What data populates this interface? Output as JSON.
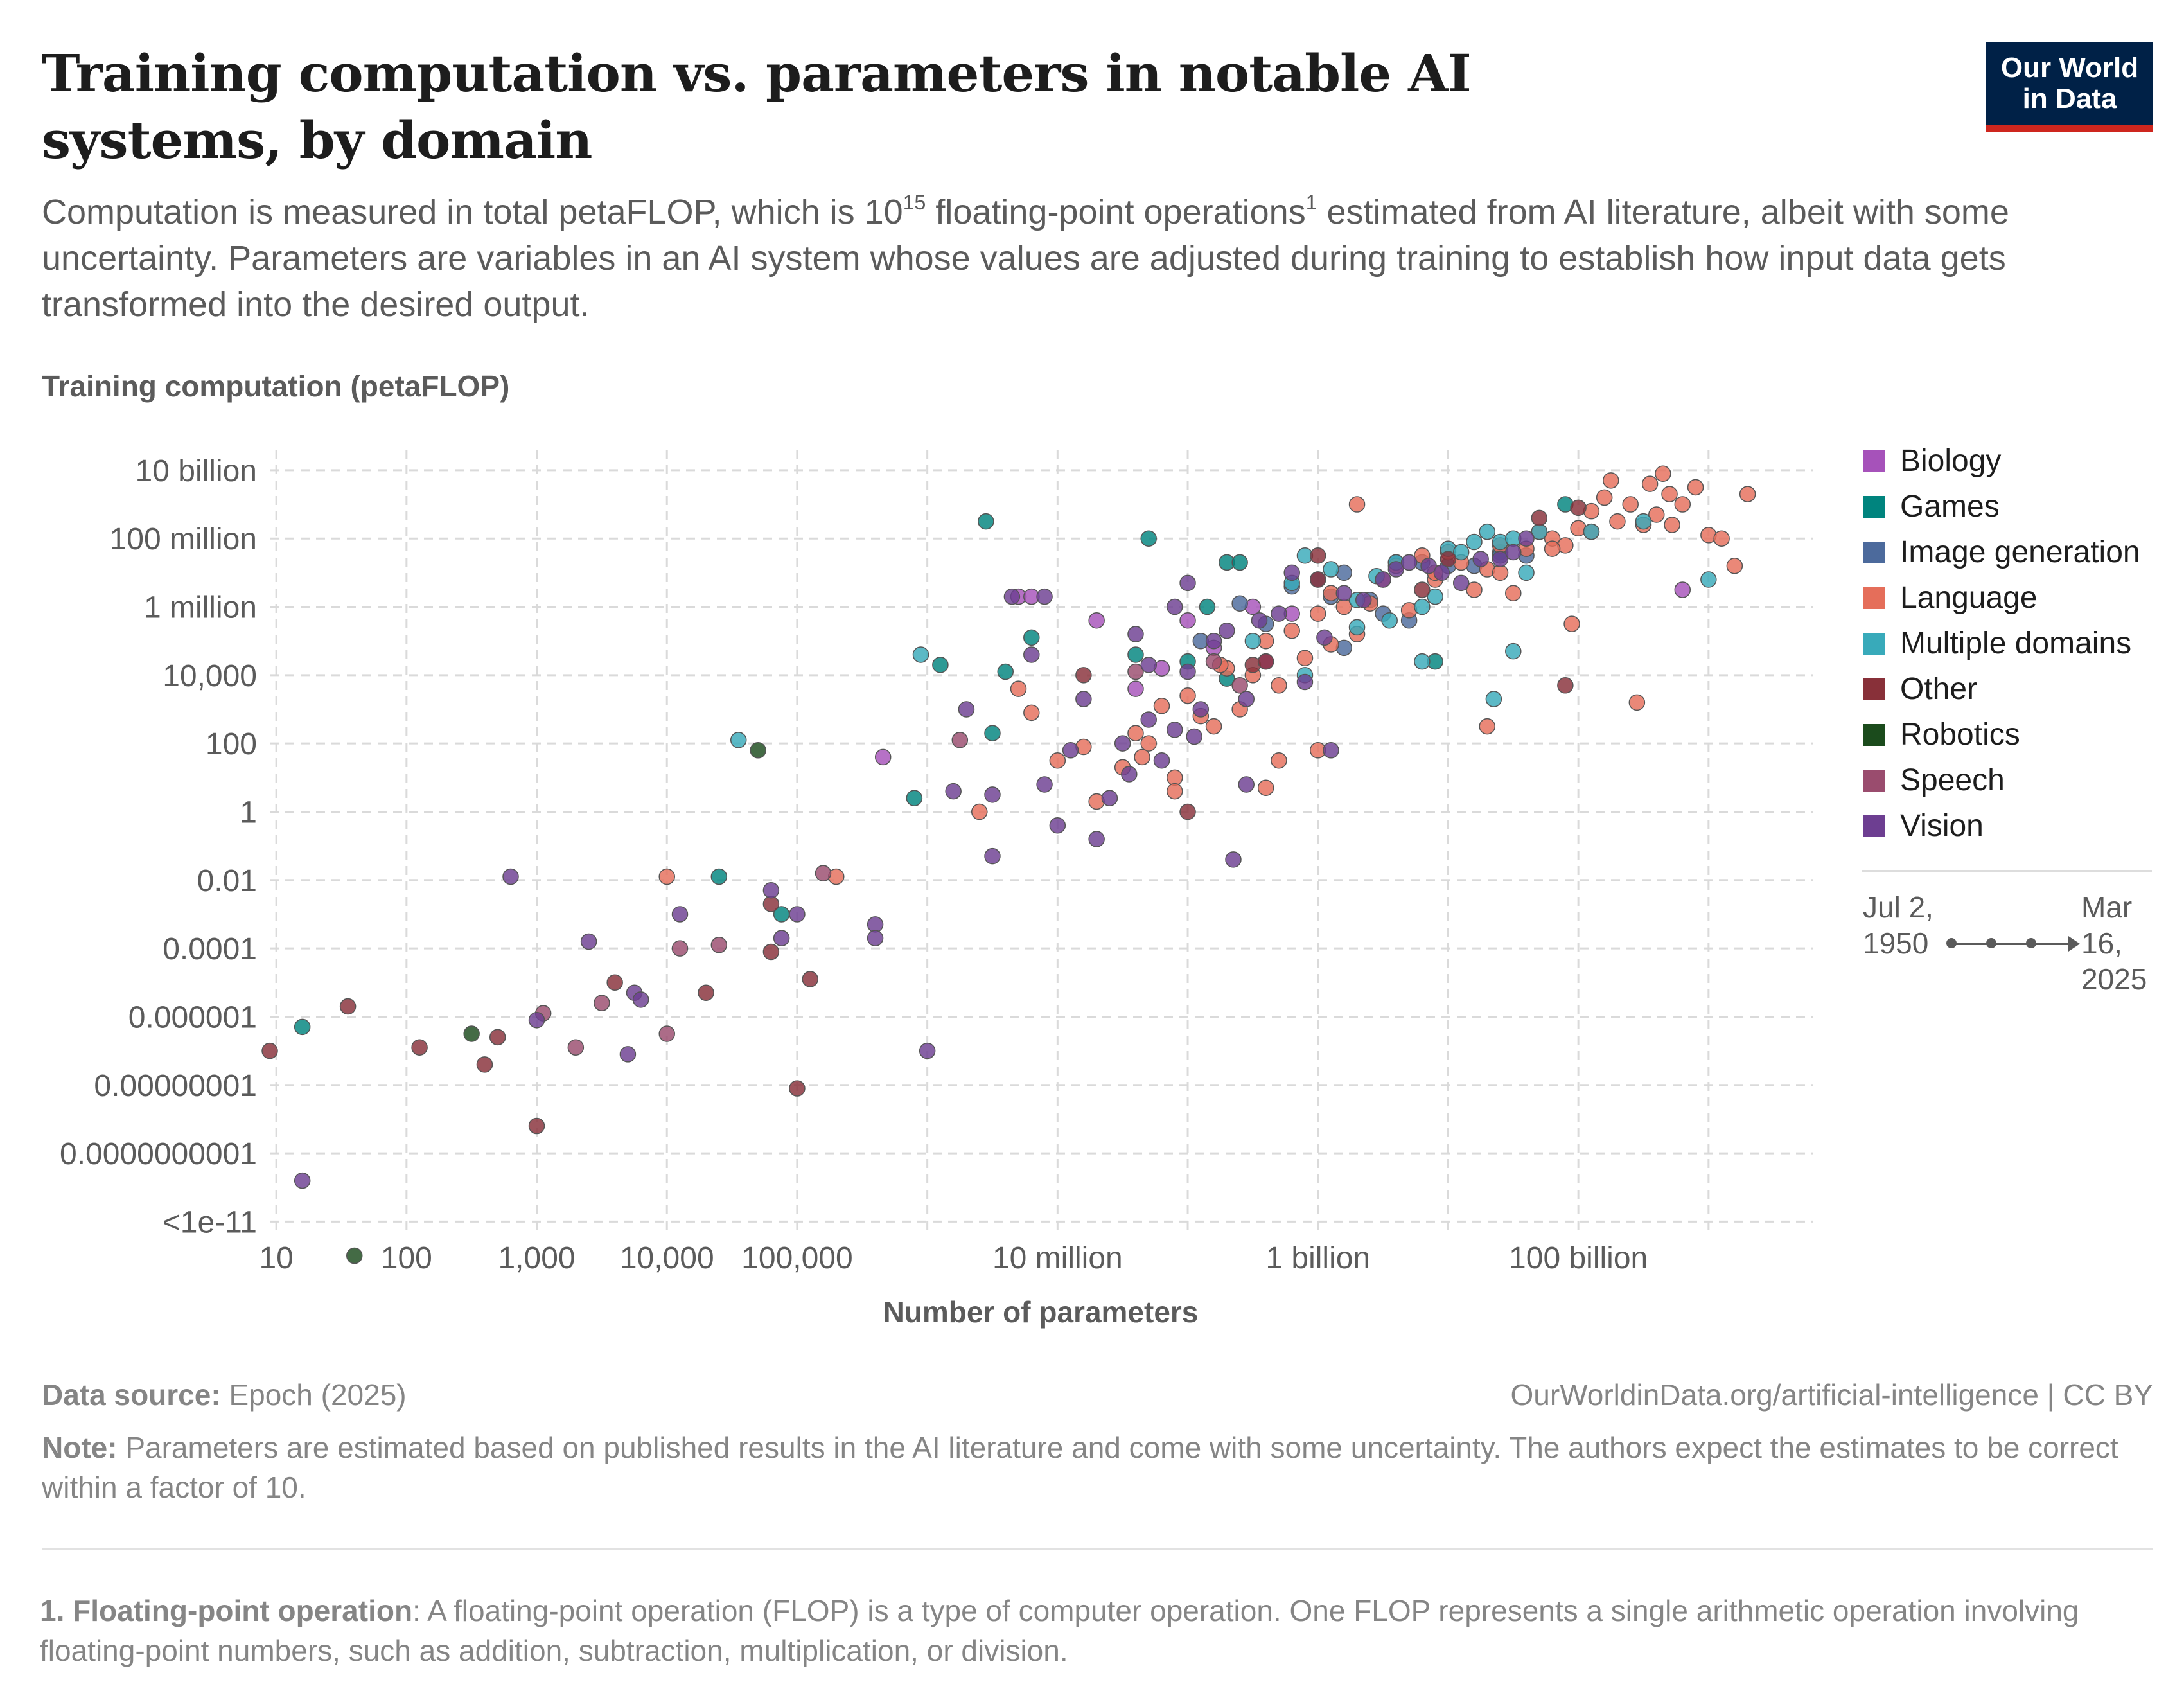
{
  "header": {
    "title": "Training computation vs. parameters in notable AI systems, by domain",
    "subtitle_part1": "Computation is measured in total petaFLOP, which is 10",
    "subtitle_sup_exp": "15",
    "subtitle_part2": " floating-point operations",
    "subtitle_sup_ref": "1",
    "subtitle_part3": " estimated from AI literature, albeit with some uncertainty. Parameters are variables in an AI system whose values are adjusted during training to establish how input data gets transformed into the desired output.",
    "logo_line1": "Our World",
    "logo_line2": "in Data"
  },
  "timeline": {
    "start": "Jul 2, 1950",
    "end": "Mar 16, 2025"
  },
  "footer": {
    "source_label": "Data source:",
    "source_value": "Epoch (2025)",
    "url": "OurWorldinData.org/artificial-intelligence | CC BY",
    "note_label": "Note:",
    "note_text": "Parameters are estimated based on published results in the AI literature and come with some uncertainty. The authors expect the estimates to be correct within a factor of 10.",
    "footnote_label": "1. Floating-point operation",
    "footnote_text": ": A floating-point operation (FLOP) is a type of computer operation. One FLOP represents a single arithmetic operation involving floating-point numbers, such as addition, subtraction, multiplication, or division."
  },
  "chart_data": {
    "type": "scatter",
    "title": "Training computation vs. parameters in notable AI systems, by domain",
    "xlabel": "Number of parameters",
    "ylabel": "Training computation (petaFLOP)",
    "x_scale": "log10",
    "y_scale": "log10",
    "xlim_log10": [
      0.95,
      12.8
    ],
    "ylim_log10": [
      -12.35,
      10.6
    ],
    "x_ticks": [
      {
        "log": 1,
        "label": "10"
      },
      {
        "log": 2,
        "label": "100"
      },
      {
        "log": 3,
        "label": "1,000"
      },
      {
        "log": 4,
        "label": "10,000"
      },
      {
        "log": 5,
        "label": "100,000"
      },
      {
        "log": 7,
        "label": "10 million"
      },
      {
        "log": 9,
        "label": "1 billion"
      },
      {
        "log": 11,
        "label": "100 billion"
      }
    ],
    "x_grid_log10": [
      1,
      2,
      3,
      4,
      5,
      6,
      7,
      8,
      9,
      10,
      11,
      12
    ],
    "y_ticks": [
      {
        "log": 10,
        "label": "10 billion"
      },
      {
        "log": 8,
        "label": "100 million"
      },
      {
        "log": 6,
        "label": "1 million"
      },
      {
        "log": 4,
        "label": "10,000"
      },
      {
        "log": 2,
        "label": "100"
      },
      {
        "log": 0,
        "label": "1"
      },
      {
        "log": -2,
        "label": "0.01"
      },
      {
        "log": -4,
        "label": "0.0001"
      },
      {
        "log": -6,
        "label": "0.000001"
      },
      {
        "log": -8,
        "label": "0.00000001"
      },
      {
        "log": -10,
        "label": "0.0000000001"
      },
      {
        "log": -12,
        "label": "<1e-11"
      }
    ],
    "series": [
      {
        "name": "Biology",
        "color": "#a652ba",
        "points": [
          [
            5.66,
            1.6
          ],
          [
            6.7,
            6.3
          ],
          [
            6.8,
            6.3
          ],
          [
            7.3,
            5.6
          ],
          [
            7.6,
            3.6
          ],
          [
            8.0,
            5.6
          ],
          [
            8.5,
            6.0
          ],
          [
            8.8,
            5.8
          ],
          [
            11.8,
            6.5
          ],
          [
            8.2,
            4.8
          ],
          [
            7.8,
            4.2
          ],
          [
            8.6,
            4.4
          ]
        ]
      },
      {
        "name": "Games",
        "color": "#00847e",
        "points": [
          [
            1.2,
            -6.3
          ],
          [
            4.4,
            -1.9
          ],
          [
            4.88,
            -3.0
          ],
          [
            5.9,
            0.4
          ],
          [
            6.1,
            4.3
          ],
          [
            6.6,
            4.1
          ],
          [
            6.45,
            8.5
          ],
          [
            6.5,
            2.3
          ],
          [
            6.8,
            5.1
          ],
          [
            7.7,
            8.0
          ],
          [
            7.6,
            4.6
          ],
          [
            8.0,
            4.4
          ],
          [
            8.15,
            6.0
          ],
          [
            8.3,
            7.3
          ],
          [
            8.4,
            7.3
          ],
          [
            8.3,
            3.9
          ],
          [
            9.9,
            4.4
          ],
          [
            10.9,
            9.0
          ],
          [
            10.4,
            7.6
          ]
        ]
      },
      {
        "name": "Image generation",
        "color": "#4c6a9c",
        "points": [
          [
            8.6,
            5.5
          ],
          [
            8.8,
            6.6
          ],
          [
            9.0,
            6.8
          ],
          [
            9.1,
            6.3
          ],
          [
            9.2,
            7.0
          ],
          [
            9.4,
            6.2
          ],
          [
            9.6,
            7.3
          ],
          [
            9.8,
            7.3
          ],
          [
            10.0,
            7.2
          ],
          [
            10.2,
            7.2
          ],
          [
            10.4,
            7.5
          ],
          [
            10.6,
            7.5
          ],
          [
            8.4,
            6.1
          ],
          [
            9.2,
            4.8
          ],
          [
            9.7,
            5.6
          ],
          [
            8.1,
            5.0
          ],
          [
            9.5,
            5.8
          ]
        ]
      },
      {
        "name": "Language",
        "color": "#e56e5a",
        "points": [
          [
            4.0,
            -1.9
          ],
          [
            5.3,
            -1.9
          ],
          [
            6.4,
            0.0
          ],
          [
            6.7,
            3.6
          ],
          [
            6.8,
            2.9
          ],
          [
            7.0,
            1.5
          ],
          [
            7.2,
            1.9
          ],
          [
            7.3,
            0.3
          ],
          [
            7.5,
            1.3
          ],
          [
            7.6,
            2.3
          ],
          [
            7.7,
            2.0
          ],
          [
            7.8,
            3.1
          ],
          [
            7.9,
            1.0
          ],
          [
            8.0,
            3.4
          ],
          [
            8.1,
            2.8
          ],
          [
            8.2,
            2.5
          ],
          [
            8.3,
            4.2
          ],
          [
            8.4,
            3.0
          ],
          [
            8.5,
            4.0
          ],
          [
            8.6,
            5.0
          ],
          [
            8.7,
            3.7
          ],
          [
            8.8,
            5.3
          ],
          [
            8.9,
            4.5
          ],
          [
            9.0,
            5.8
          ],
          [
            9.1,
            6.4
          ],
          [
            9.2,
            6.0
          ],
          [
            9.3,
            5.2
          ],
          [
            9.4,
            6.1
          ],
          [
            9.5,
            6.8
          ],
          [
            9.6,
            7.2
          ],
          [
            9.7,
            5.9
          ],
          [
            9.8,
            7.5
          ],
          [
            9.9,
            6.8
          ],
          [
            10.0,
            7.6
          ],
          [
            10.1,
            7.3
          ],
          [
            10.2,
            6.5
          ],
          [
            10.3,
            7.1
          ],
          [
            10.4,
            7.0
          ],
          [
            10.5,
            6.4
          ],
          [
            10.6,
            7.7
          ],
          [
            10.7,
            8.2
          ],
          [
            10.8,
            8.0
          ],
          [
            10.9,
            7.8
          ],
          [
            11.0,
            8.3
          ],
          [
            11.1,
            8.8
          ],
          [
            11.2,
            9.2
          ],
          [
            11.3,
            8.5
          ],
          [
            11.4,
            9.0
          ],
          [
            11.5,
            8.4
          ],
          [
            11.6,
            8.7
          ],
          [
            11.7,
            9.3
          ],
          [
            11.8,
            9.0
          ],
          [
            11.9,
            9.5
          ],
          [
            12.0,
            8.1
          ],
          [
            12.1,
            8.0
          ],
          [
            12.2,
            7.2
          ],
          [
            12.3,
            9.3
          ],
          [
            11.72,
            8.4
          ],
          [
            11.25,
            9.7
          ],
          [
            11.55,
            9.6
          ],
          [
            11.65,
            9.9
          ],
          [
            11.1,
            8.2
          ],
          [
            10.3,
            2.5
          ],
          [
            10.8,
            7.7
          ],
          [
            10.95,
            5.5
          ],
          [
            11.45,
            3.2
          ],
          [
            9.0,
            1.8
          ],
          [
            8.6,
            0.7
          ],
          [
            9.1,
            4.9
          ],
          [
            8.7,
            1.5
          ],
          [
            7.9,
            0.6
          ],
          [
            7.65,
            1.6
          ],
          [
            8.25,
            4.3
          ],
          [
            9.3,
            9.0
          ],
          [
            9.9,
            7.0
          ],
          [
            10.4,
            7.8
          ]
        ]
      },
      {
        "name": "Multiple domains",
        "color": "#38aaba",
        "points": [
          [
            4.55,
            2.1
          ],
          [
            5.95,
            4.6
          ],
          [
            8.8,
            6.7
          ],
          [
            8.9,
            7.5
          ],
          [
            9.1,
            7.1
          ],
          [
            9.3,
            6.2
          ],
          [
            9.45,
            6.9
          ],
          [
            9.55,
            5.6
          ],
          [
            9.6,
            7.3
          ],
          [
            9.8,
            6.0
          ],
          [
            9.9,
            6.3
          ],
          [
            10.0,
            7.7
          ],
          [
            10.1,
            7.6
          ],
          [
            10.2,
            7.9
          ],
          [
            10.3,
            8.2
          ],
          [
            10.4,
            7.9
          ],
          [
            10.5,
            8.0
          ],
          [
            10.6,
            7.0
          ],
          [
            10.7,
            8.2
          ],
          [
            10.35,
            3.3
          ],
          [
            10.5,
            4.7
          ],
          [
            11.1,
            8.2
          ],
          [
            11.5,
            8.5
          ],
          [
            12.0,
            6.8
          ],
          [
            9.8,
            4.4
          ],
          [
            9.3,
            5.4
          ],
          [
            8.5,
            5.0
          ],
          [
            8.9,
            4.0
          ]
        ]
      },
      {
        "name": "Other",
        "color": "#883039",
        "points": [
          [
            0.95,
            -7.0
          ],
          [
            1.55,
            -5.7
          ],
          [
            2.1,
            -6.9
          ],
          [
            2.6,
            -7.4
          ],
          [
            2.7,
            -6.6
          ],
          [
            3.0,
            -9.2
          ],
          [
            4.3,
            -5.3
          ],
          [
            4.8,
            -2.7
          ],
          [
            5.0,
            -8.1
          ],
          [
            5.1,
            -4.9
          ],
          [
            3.6,
            -5.0
          ],
          [
            4.8,
            -4.1
          ],
          [
            7.2,
            4.0
          ],
          [
            8.0,
            0.0
          ],
          [
            8.5,
            4.3
          ],
          [
            9.0,
            6.8
          ],
          [
            9.8,
            6.5
          ],
          [
            10.7,
            8.6
          ],
          [
            11.0,
            8.9
          ],
          [
            10.9,
            3.7
          ],
          [
            8.6,
            4.4
          ],
          [
            9.0,
            7.5
          ],
          [
            10.0,
            7.4
          ]
        ]
      },
      {
        "name": "Robotics",
        "color": "#1b4b1c",
        "points": [
          [
            1.6,
            -13.0
          ],
          [
            2.5,
            -6.5
          ],
          [
            4.7,
            1.8
          ]
        ]
      },
      {
        "name": "Speech",
        "color": "#9a4c6e",
        "points": [
          [
            3.05,
            -5.9
          ],
          [
            3.3,
            -6.9
          ],
          [
            4.1,
            -4.0
          ],
          [
            4.0,
            -6.5
          ],
          [
            4.4,
            -3.9
          ],
          [
            5.2,
            -1.8
          ],
          [
            3.5,
            -5.6
          ],
          [
            6.25,
            2.1
          ],
          [
            7.6,
            4.1
          ],
          [
            8.2,
            4.4
          ],
          [
            8.4,
            3.7
          ]
        ]
      },
      {
        "name": "Vision",
        "color": "#6d3e91",
        "points": [
          [
            1.2,
            -10.8
          ],
          [
            2.8,
            -1.9
          ],
          [
            3.0,
            -6.1
          ],
          [
            3.4,
            -3.8
          ],
          [
            3.7,
            -7.1
          ],
          [
            3.75,
            -5.3
          ],
          [
            3.8,
            -5.5
          ],
          [
            4.1,
            -3.0
          ],
          [
            4.8,
            -2.3
          ],
          [
            4.88,
            -3.7
          ],
          [
            5.0,
            -3.0
          ],
          [
            5.6,
            -3.3
          ],
          [
            5.6,
            -3.7
          ],
          [
            6.0,
            -7.0
          ],
          [
            6.2,
            0.6
          ],
          [
            6.5,
            0.5
          ],
          [
            6.5,
            -1.3
          ],
          [
            6.65,
            6.3
          ],
          [
            6.9,
            0.8
          ],
          [
            7.0,
            -0.4
          ],
          [
            7.1,
            1.8
          ],
          [
            7.3,
            -0.8
          ],
          [
            7.4,
            0.4
          ],
          [
            7.5,
            2.0
          ],
          [
            7.55,
            1.1
          ],
          [
            7.7,
            2.7
          ],
          [
            7.8,
            1.5
          ],
          [
            7.9,
            6.0
          ],
          [
            8.0,
            4.1
          ],
          [
            8.05,
            2.2
          ],
          [
            8.2,
            5.0
          ],
          [
            8.35,
            -1.4
          ],
          [
            8.45,
            0.8
          ],
          [
            8.55,
            5.6
          ],
          [
            8.7,
            5.8
          ],
          [
            8.8,
            7.0
          ],
          [
            8.9,
            3.8
          ],
          [
            9.05,
            5.1
          ],
          [
            9.2,
            6.4
          ],
          [
            9.35,
            6.2
          ],
          [
            9.5,
            6.8
          ],
          [
            9.6,
            7.1
          ],
          [
            9.7,
            7.3
          ],
          [
            9.85,
            7.2
          ],
          [
            9.95,
            7.0
          ],
          [
            10.1,
            6.7
          ],
          [
            10.25,
            7.4
          ],
          [
            10.4,
            7.4
          ],
          [
            10.5,
            7.6
          ],
          [
            10.6,
            8.0
          ],
          [
            6.8,
            4.6
          ],
          [
            7.7,
            4.3
          ],
          [
            8.0,
            6.7
          ],
          [
            8.3,
            5.3
          ],
          [
            6.9,
            6.3
          ],
          [
            7.2,
            3.3
          ],
          [
            7.6,
            5.2
          ],
          [
            8.1,
            3.0
          ],
          [
            8.45,
            3.3
          ],
          [
            6.3,
            3.0
          ],
          [
            9.1,
            1.8
          ],
          [
            7.9,
            2.4
          ]
        ]
      }
    ]
  }
}
